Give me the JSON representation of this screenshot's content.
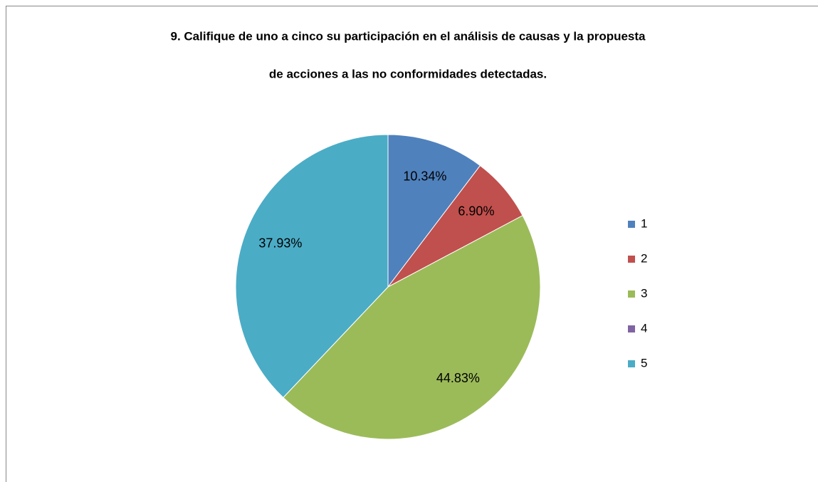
{
  "chart_data": {
    "type": "pie",
    "title": [
      "9. Califique de uno a cinco su participación en el análisis de causas y la propuesta",
      "de acciones a las no conformidades detectadas."
    ],
    "categories": [
      "1",
      "2",
      "3",
      "4",
      "5"
    ],
    "values": [
      10.34,
      6.9,
      44.83,
      0,
      37.93
    ],
    "value_labels": [
      "10.34%",
      "6.90%",
      "44.83%",
      null,
      "37.93%"
    ],
    "colors": [
      "#4f81bd",
      "#c0504d",
      "#9bbb59",
      "#8064a2",
      "#4bacc6"
    ],
    "legend": "right"
  }
}
